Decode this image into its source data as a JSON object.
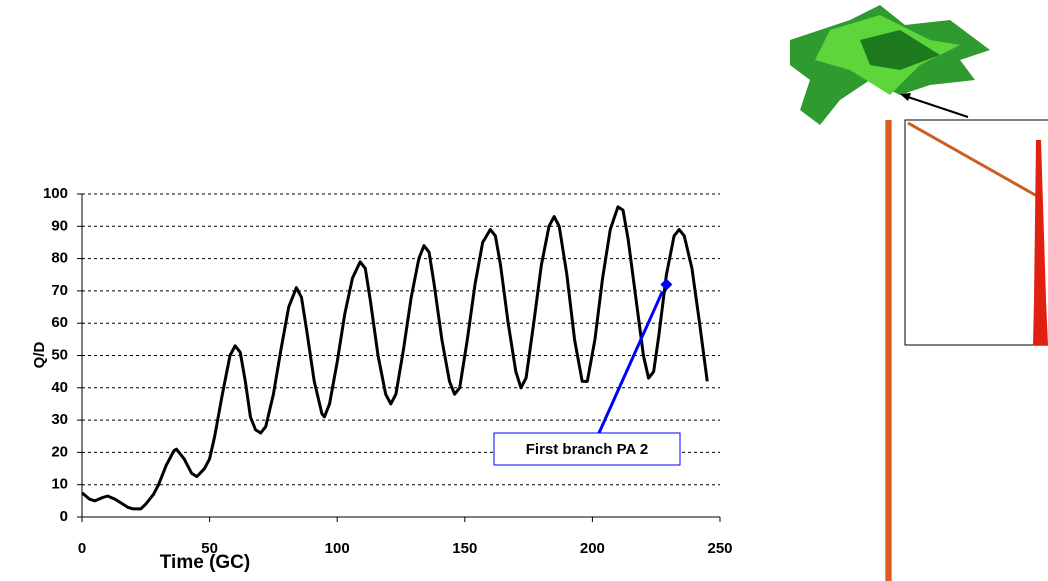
{
  "chart_data": {
    "type": "line",
    "x_label": "Time (GC)",
    "y_label": "Q/D",
    "x": [
      0,
      3,
      5,
      8,
      10,
      13,
      15,
      18,
      20,
      23,
      25,
      28,
      30,
      33,
      36,
      37,
      40,
      43,
      45,
      48,
      50,
      52,
      55,
      58,
      60,
      62,
      64,
      66,
      68,
      70,
      72,
      75,
      78,
      81,
      84,
      86,
      88,
      91,
      94,
      95,
      97,
      100,
      103,
      106,
      109,
      111,
      113,
      116,
      119,
      121,
      123,
      126,
      129,
      132,
      134,
      136,
      138,
      141,
      144,
      146,
      148,
      151,
      154,
      157,
      160,
      162,
      164,
      167,
      170,
      172,
      174,
      177,
      180,
      183,
      185,
      187,
      190,
      193,
      196,
      198,
      201,
      204,
      207,
      210,
      212,
      214,
      217,
      220,
      222,
      224,
      226,
      229,
      232,
      234,
      236,
      239,
      242,
      244,
      245
    ],
    "series": [
      {
        "name": "Q/D",
        "color": "#000000",
        "values": [
          7.5,
          5.5,
          5,
          6,
          6.5,
          5.5,
          4.5,
          3,
          2.5,
          2.5,
          4,
          7,
          10,
          16,
          20.5,
          21,
          18,
          13.5,
          12.5,
          15,
          18,
          25,
          38,
          50,
          53,
          51,
          42,
          31,
          27,
          26,
          28,
          38,
          52,
          65,
          71,
          68,
          58,
          42,
          32,
          31,
          35,
          48,
          63,
          74,
          79,
          77,
          67,
          50,
          38,
          35,
          38,
          52,
          68,
          80,
          84,
          82,
          72,
          55,
          42,
          38,
          40,
          55,
          72,
          85,
          89,
          87,
          78,
          60,
          45,
          40,
          43,
          60,
          78,
          90,
          93,
          90,
          75,
          55,
          42,
          42,
          55,
          74,
          89,
          96,
          95,
          86,
          68,
          50,
          43,
          45,
          56,
          75,
          87,
          89,
          87,
          77,
          60,
          48,
          42
        ]
      }
    ],
    "xlim": [
      0,
      250
    ],
    "xticks": [
      0,
      50,
      100,
      150,
      200,
      250
    ],
    "ylim": [
      0,
      100
    ],
    "yticks": [
      0,
      10,
      20,
      30,
      40,
      50,
      60,
      70,
      80,
      90,
      100
    ],
    "grid": true,
    "annotation": {
      "text": "First branch PA 2",
      "x": 229,
      "y": 72,
      "color": "#0000ff"
    }
  }
}
